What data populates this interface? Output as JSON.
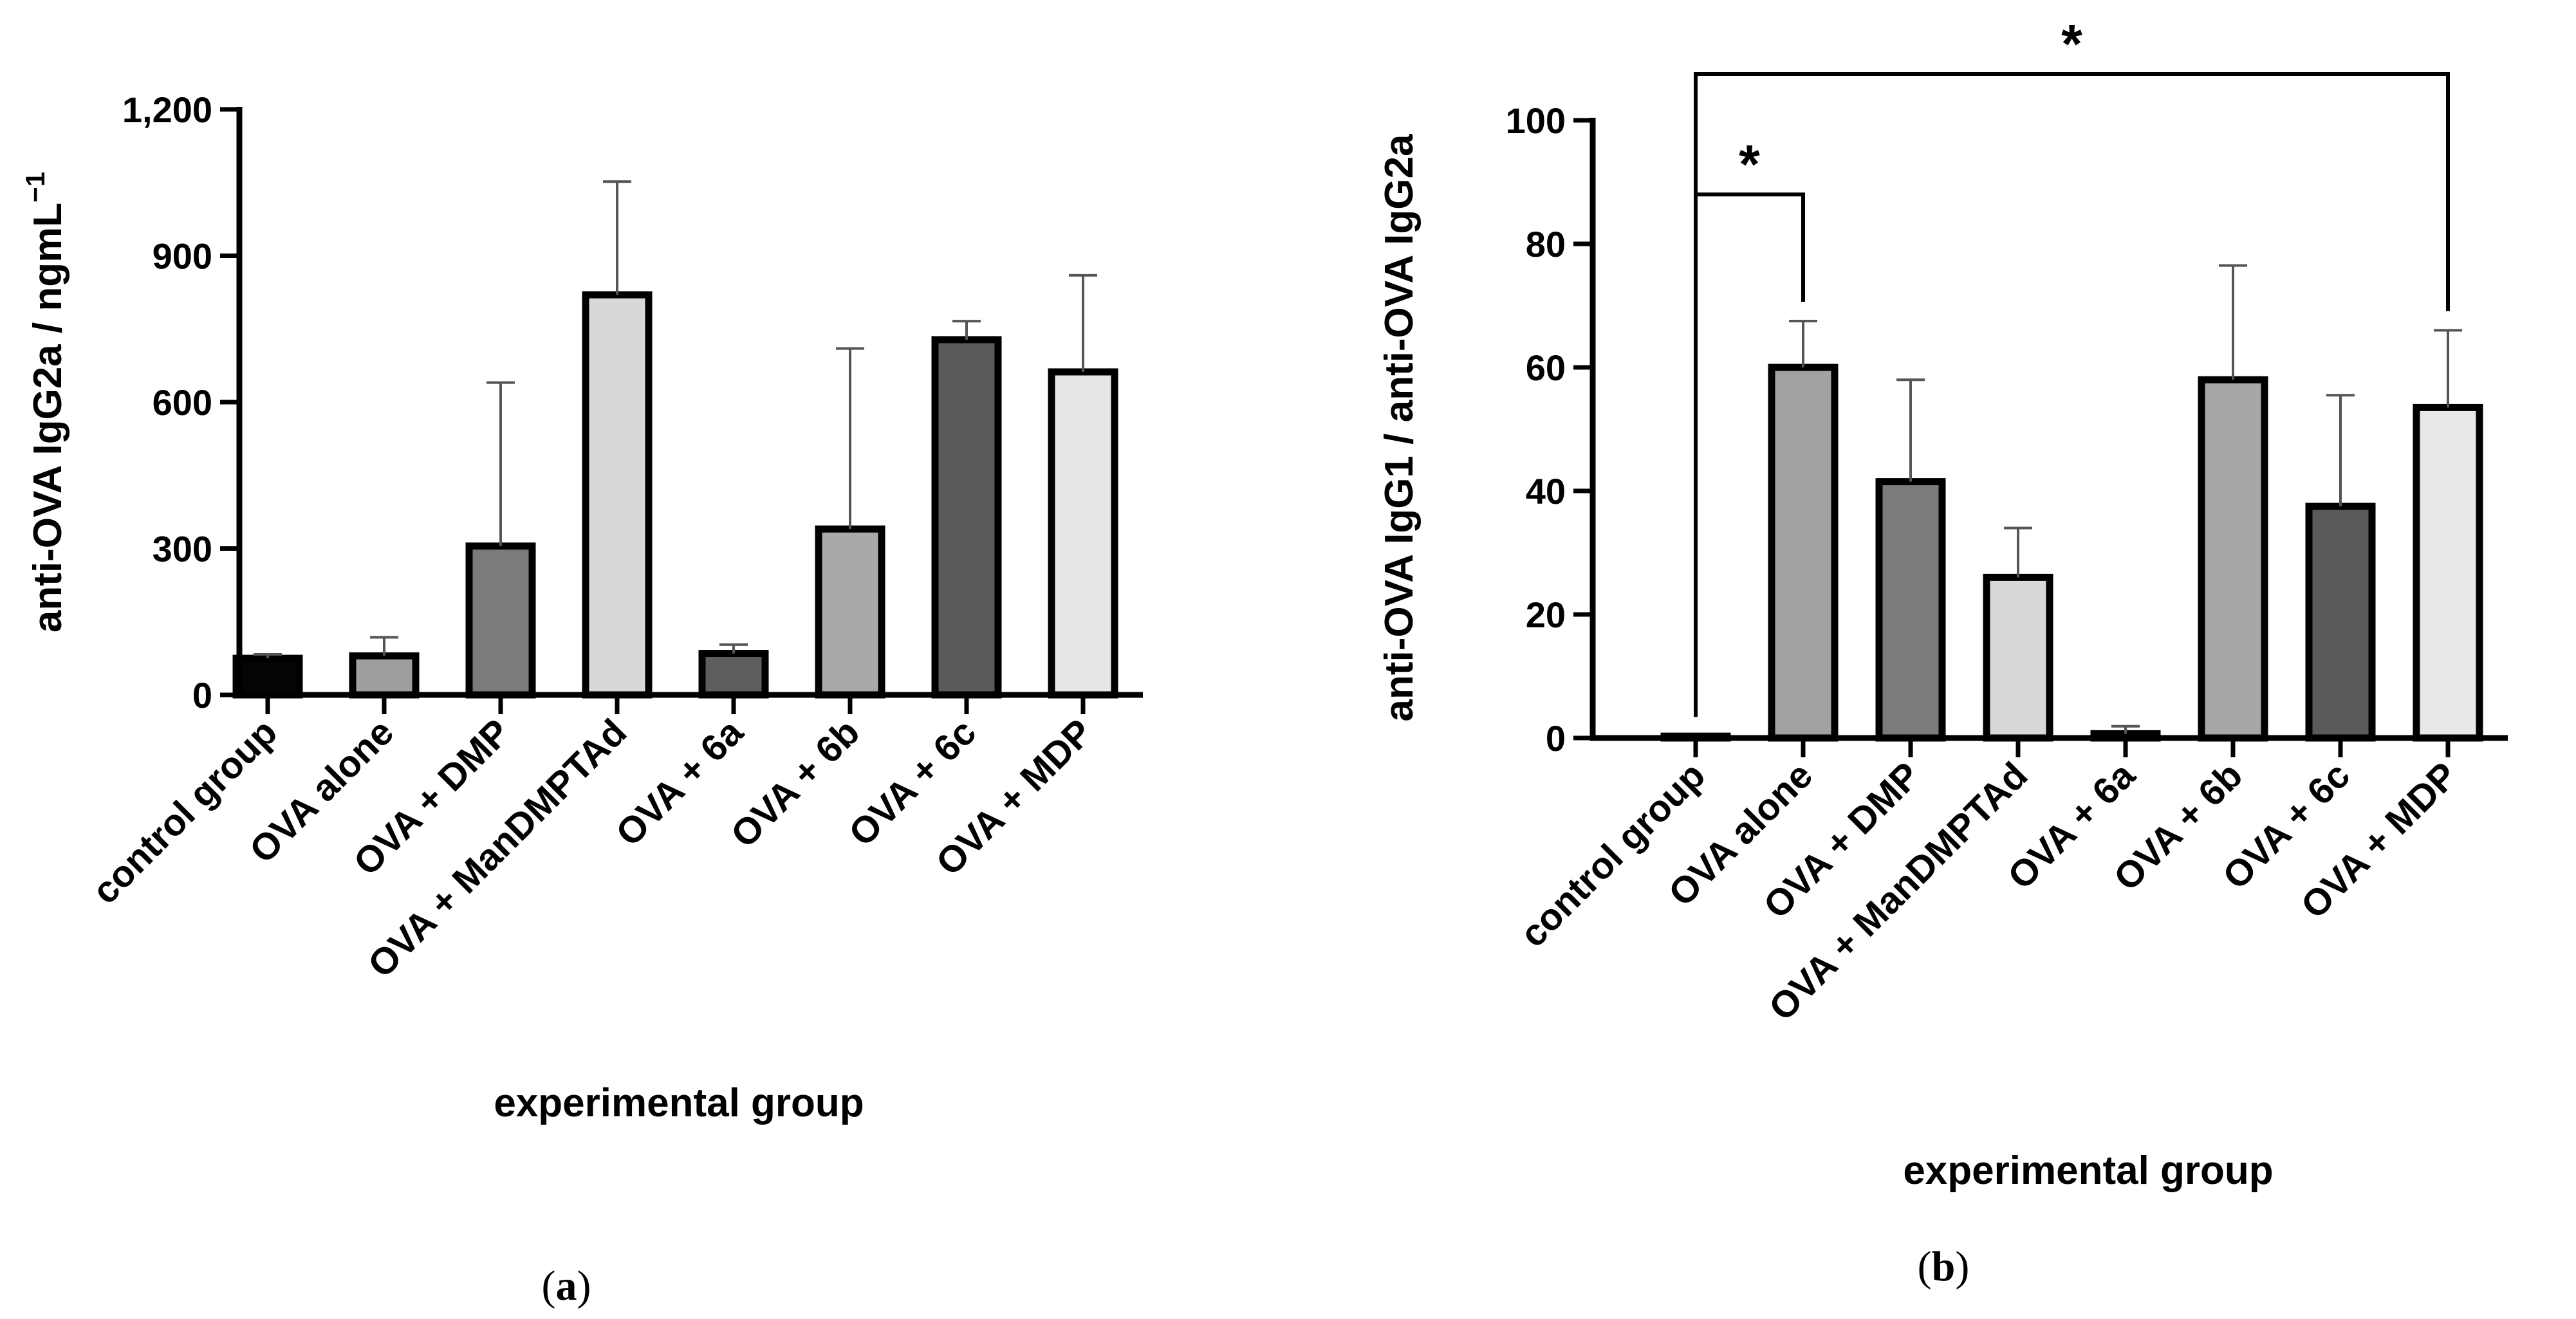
{
  "chart_data": [
    {
      "panel": "(a)",
      "panel_prefix": "(",
      "panel_letter": "a",
      "panel_suffix": ")",
      "type": "bar",
      "ylabel": "anti-OVA IgG2a / ngmL",
      "ylabel_superscript": "−1",
      "xlabel": "experimental group",
      "ylim": [
        0,
        1200
      ],
      "yticks": [
        0,
        300,
        600,
        900,
        1200
      ],
      "ytick_labels": [
        "0",
        "300",
        "600",
        "900",
        "1,200"
      ],
      "categories": [
        "control group",
        "OVA alone",
        "OVA + DMP",
        "OVA + ManDMPTAd",
        "OVA + 6a",
        "OVA + 6b",
        "OVA + 6c",
        "OVA + MDP"
      ],
      "values": [
        75,
        80,
        305,
        820,
        85,
        340,
        728,
        662
      ],
      "errors": [
        8,
        38,
        335,
        232,
        18,
        370,
        38,
        198
      ],
      "colors": [
        "#050505",
        "#9e9e9e",
        "#7b7b7b",
        "#d8d8d8",
        "#5e5e5e",
        "#a9a9a9",
        "#5a5a5a",
        "#e6e6e6"
      ],
      "significance": []
    },
    {
      "panel": "(b)",
      "panel_prefix": "(",
      "panel_letter": "b",
      "panel_suffix": ")",
      "type": "bar",
      "ylabel": "anti-OVA IgG1 / anti-OVA IgG2a",
      "xlabel": "experimental group",
      "ylim": [
        0,
        100
      ],
      "yticks": [
        0,
        20,
        40,
        60,
        80,
        100
      ],
      "ytick_labels": [
        "0",
        "20",
        "40",
        "60",
        "80",
        "100"
      ],
      "categories": [
        "control group",
        "OVA alone",
        "OVA + DMP",
        "OVA + ManDMPTAd",
        "OVA + 6a",
        "OVA + 6b",
        "OVA + 6c",
        "OVA + MDP"
      ],
      "values": [
        0.3,
        60,
        41.5,
        26,
        0.7,
        58,
        37.5,
        53.5
      ],
      "errors": [
        0,
        7.5,
        16.5,
        8,
        1.2,
        18.5,
        18,
        12.5
      ],
      "colors": [
        "#ffffff",
        "#a2a2a2",
        "#7b7b7b",
        "#d8d8d8",
        "#5e5e5e",
        "#a6a6a6",
        "#5a5a5a",
        "#e8e8e8"
      ],
      "significance": [
        {
          "from": 0,
          "to": 1,
          "label": "*"
        },
        {
          "from": 0,
          "to": 7,
          "label": "*"
        }
      ]
    }
  ]
}
